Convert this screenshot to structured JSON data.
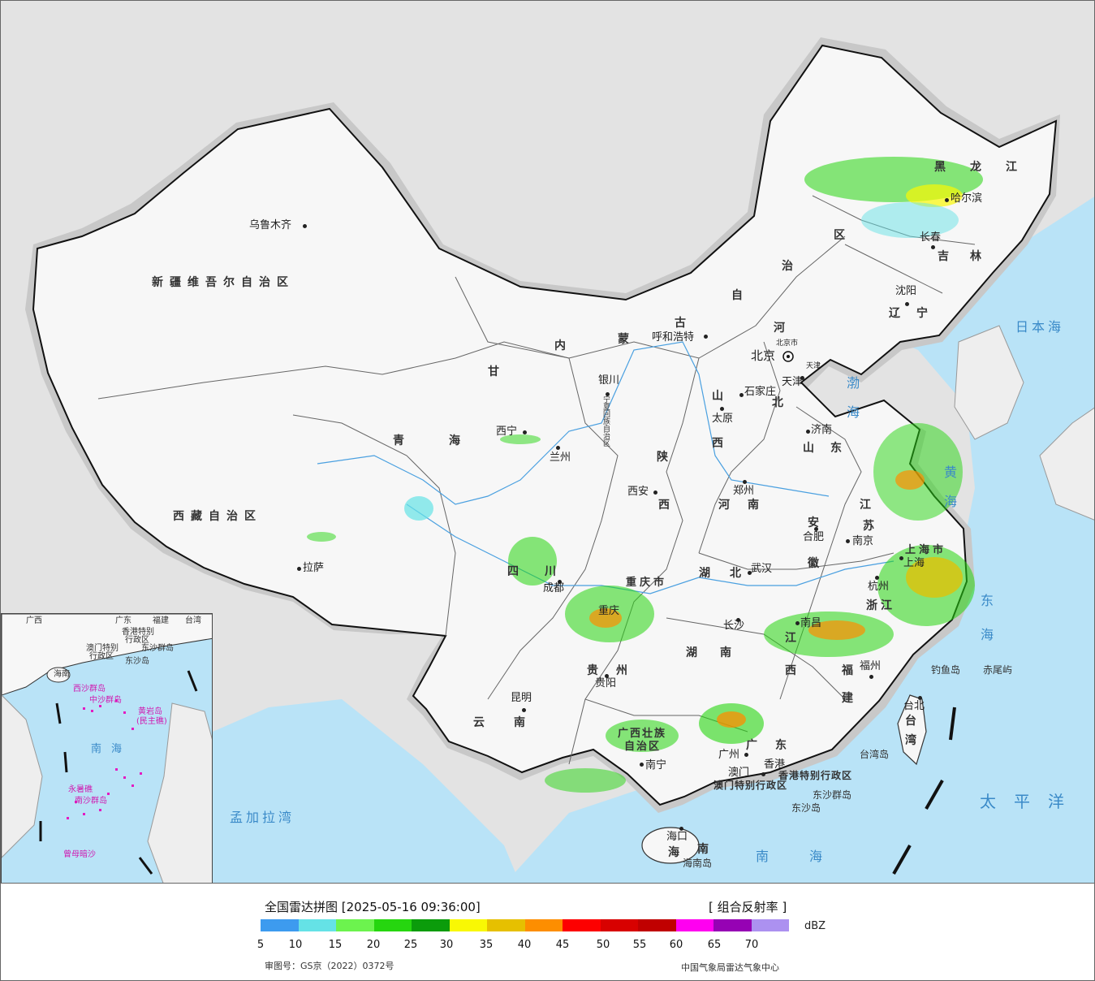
{
  "map": {
    "provinces": [
      {
        "id": "xinjiang",
        "text": "新疆维吾尔自治区"
      },
      {
        "id": "xizang",
        "text": "西藏自治区"
      },
      {
        "id": "qinghai",
        "text": "青海"
      },
      {
        "id": "gansu",
        "text": "甘"
      },
      {
        "id": "neimenggu_nei",
        "text": "内"
      },
      {
        "id": "neimenggu_meng",
        "text": "蒙"
      },
      {
        "id": "neimenggu_gu",
        "text": "古"
      },
      {
        "id": "neimenggu_zi",
        "text": "自"
      },
      {
        "id": "neimenggu_zhi",
        "text": "治"
      },
      {
        "id": "neimenggu_qu",
        "text": "区"
      },
      {
        "id": "heilongjiang",
        "text": "黑龙江"
      },
      {
        "id": "jilin",
        "text": "吉林"
      },
      {
        "id": "liaoning",
        "text": "辽宁"
      },
      {
        "id": "hebei_he",
        "text": "河"
      },
      {
        "id": "hebei_bei",
        "text": "北"
      },
      {
        "id": "shanxi_shan",
        "text": "山"
      },
      {
        "id": "shanxi_xi",
        "text": "西"
      },
      {
        "id": "shandong",
        "text": "山东"
      },
      {
        "id": "shaanxi_shan",
        "text": "陕"
      },
      {
        "id": "shaanxi_xi",
        "text": "西"
      },
      {
        "id": "henan",
        "text": "河南"
      },
      {
        "id": "sichuan",
        "text": "四川"
      },
      {
        "id": "chongqing",
        "text": "重庆市"
      },
      {
        "id": "hubei",
        "text": "湖北"
      },
      {
        "id": "anhui_an",
        "text": "安"
      },
      {
        "id": "anhui_hui",
        "text": "徽"
      },
      {
        "id": "jiangsu_jiang",
        "text": "江"
      },
      {
        "id": "jiangsu_su",
        "text": "苏"
      },
      {
        "id": "shanghai",
        "text": "上海市"
      },
      {
        "id": "zhejiang",
        "text": "浙江"
      },
      {
        "id": "hunan",
        "text": "湖南"
      },
      {
        "id": "jiangxi_jiang",
        "text": "江"
      },
      {
        "id": "jiangxi_xi",
        "text": "西"
      },
      {
        "id": "fujian_fu",
        "text": "福"
      },
      {
        "id": "fujian_jian",
        "text": "建"
      },
      {
        "id": "guizhou",
        "text": "贵州"
      },
      {
        "id": "yunnan",
        "text": "云南"
      },
      {
        "id": "guangxi_1",
        "text": "广西壮族"
      },
      {
        "id": "guangxi_2",
        "text": "自治区"
      },
      {
        "id": "guangdong",
        "text": "广东"
      },
      {
        "id": "hainan_hai",
        "text": "海"
      },
      {
        "id": "hainan_nan",
        "text": "南"
      },
      {
        "id": "taiwan_tai",
        "text": "台"
      },
      {
        "id": "taiwan_wan",
        "text": "湾"
      },
      {
        "id": "ningxia",
        "text": "宁夏回族自治区"
      },
      {
        "id": "hk_sar",
        "text": "香港特别行政区"
      },
      {
        "id": "macao_sar",
        "text": "澳门特别行政区"
      }
    ],
    "cities": [
      {
        "id": "urumqi",
        "text": "乌鲁木齐"
      },
      {
        "id": "lhasa",
        "text": "拉萨"
      },
      {
        "id": "xining",
        "text": "西宁"
      },
      {
        "id": "lanzhou",
        "text": "兰州"
      },
      {
        "id": "yinchuan",
        "text": "银川"
      },
      {
        "id": "hohhot",
        "text": "呼和浩特"
      },
      {
        "id": "beijing",
        "text": "北京"
      },
      {
        "id": "beijingshi",
        "text": "北京市"
      },
      {
        "id": "tianjin",
        "text": "天津"
      },
      {
        "id": "tianjinshi",
        "text": "天津"
      },
      {
        "id": "shijiazhuang",
        "text": "石家庄"
      },
      {
        "id": "taiyuan",
        "text": "太原"
      },
      {
        "id": "jinan",
        "text": "济南"
      },
      {
        "id": "xian",
        "text": "西安"
      },
      {
        "id": "zhengzhou",
        "text": "郑州"
      },
      {
        "id": "hefei",
        "text": "合肥"
      },
      {
        "id": "nanjing",
        "text": "南京"
      },
      {
        "id": "shanghai_c",
        "text": "上海"
      },
      {
        "id": "hangzhou",
        "text": "杭州"
      },
      {
        "id": "wuhan",
        "text": "武汉"
      },
      {
        "id": "chengdu",
        "text": "成都"
      },
      {
        "id": "chongqing_c",
        "text": "重庆"
      },
      {
        "id": "changsha",
        "text": "长沙"
      },
      {
        "id": "nanchang",
        "text": "南昌"
      },
      {
        "id": "fuzhou",
        "text": "福州"
      },
      {
        "id": "guiyang",
        "text": "贵阳"
      },
      {
        "id": "kunming",
        "text": "昆明"
      },
      {
        "id": "nanning",
        "text": "南宁"
      },
      {
        "id": "guangzhou",
        "text": "广州"
      },
      {
        "id": "hongkong",
        "text": "香港"
      },
      {
        "id": "macao",
        "text": "澳门"
      },
      {
        "id": "haikou",
        "text": "海口"
      },
      {
        "id": "taibei",
        "text": "台北"
      },
      {
        "id": "harbin",
        "text": "哈尔滨"
      },
      {
        "id": "changchun",
        "text": "长春"
      },
      {
        "id": "shenyang",
        "text": "沈阳"
      }
    ],
    "seas": [
      {
        "id": "japan_sea",
        "text": "日本海"
      },
      {
        "id": "bohai",
        "text": "渤海"
      },
      {
        "id": "huanghai",
        "text": "黄海"
      },
      {
        "id": "donghai",
        "text": "东海"
      },
      {
        "id": "pacific",
        "text": "太平洋"
      },
      {
        "id": "nanhai",
        "text": "南海"
      },
      {
        "id": "bengal",
        "text": "孟加拉湾"
      }
    ],
    "islands": [
      {
        "id": "diaoyu",
        "text": "钓鱼岛"
      },
      {
        "id": "chiwei",
        "text": "赤尾屿"
      },
      {
        "id": "taiwan_dao",
        "text": "台湾岛"
      },
      {
        "id": "dongsha_qd",
        "text": "东沙群岛"
      },
      {
        "id": "dongsha_d",
        "text": "东沙岛"
      },
      {
        "id": "hainan_dao",
        "text": "海南岛"
      }
    ],
    "inset": {
      "labels": [
        {
          "id": "i_guangxi",
          "text": "广西"
        },
        {
          "id": "i_guangdong",
          "text": "广东"
        },
        {
          "id": "i_fujian",
          "text": "福建"
        },
        {
          "id": "i_taiwan",
          "text": "台湾"
        },
        {
          "id": "i_hk",
          "text": "香港特别"
        },
        {
          "id": "i_hk2",
          "text": "行政区"
        },
        {
          "id": "i_macao",
          "text": "澳门特别"
        },
        {
          "id": "i_macao2",
          "text": "行政区"
        },
        {
          "id": "i_dongsha",
          "text": "东沙群岛"
        },
        {
          "id": "i_dongshadao",
          "text": "东沙岛"
        },
        {
          "id": "i_hainan",
          "text": "海南"
        },
        {
          "id": "i_xisha",
          "text": "西沙群岛"
        },
        {
          "id": "i_zhongsha",
          "text": "中沙群岛"
        },
        {
          "id": "i_huangyan",
          "text": "黄岩岛"
        },
        {
          "id": "i_minzhu",
          "text": "(民主礁)"
        },
        {
          "id": "i_nanhai",
          "text": "南海"
        },
        {
          "id": "i_yongshu",
          "text": "永暑礁"
        },
        {
          "id": "i_nansha",
          "text": "南沙群岛"
        },
        {
          "id": "i_zengmu",
          "text": "曾母暗沙"
        }
      ]
    }
  },
  "legend": {
    "title": "全国雷达拼图 [2025-05-16 09:36:00]",
    "product": "[ 组合反射率 ]",
    "unit": "dBZ",
    "colors": [
      "#3d9bef",
      "#65e2e6",
      "#6cf34e",
      "#26d60f",
      "#0b9c0b",
      "#f9f804",
      "#e6c000",
      "#fd8e00",
      "#fd0000",
      "#d80100",
      "#c00000",
      "#ff00f0",
      "#9602b4",
      "#ac91f0"
    ],
    "ticks": [
      "5",
      "10",
      "15",
      "20",
      "25",
      "30",
      "35",
      "40",
      "45",
      "50",
      "55",
      "60",
      "65",
      "70"
    ],
    "review_no": "审图号：GS京（2022）0372号",
    "credit": "中国气象局雷达气象中心"
  }
}
